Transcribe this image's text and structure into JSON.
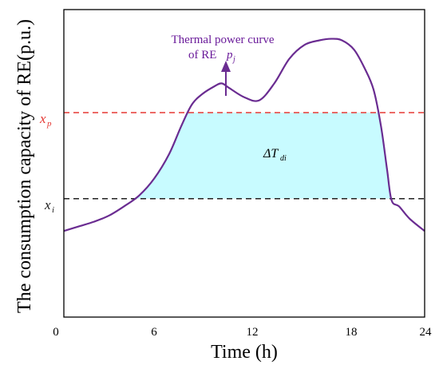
{
  "chart_data": {
    "type": "line",
    "xlabel": "Time (h)",
    "ylabel": "The consumption capacity of RE(p.u.)",
    "x_ticks": [
      "0",
      "6",
      "12",
      "18",
      "24"
    ],
    "xlim": [
      0,
      24
    ],
    "ylim": [
      0,
      1
    ],
    "grid": false,
    "series": [
      {
        "name": "Thermal power curve of RE p_j",
        "color": "#6a2c91",
        "x": [
          0,
          1,
          2,
          3,
          4,
          5,
          6,
          7,
          7.8,
          8.5,
          9.2,
          10,
          10.5,
          11,
          12,
          13,
          14,
          15,
          16,
          17,
          17.8,
          18.5,
          19.3,
          20,
          20.6,
          21.1,
          21.5,
          21.8,
          22.3,
          23,
          24
        ],
        "y": [
          0.28,
          0.295,
          0.31,
          0.33,
          0.36,
          0.395,
          0.45,
          0.53,
          0.62,
          0.69,
          0.725,
          0.75,
          0.76,
          0.745,
          0.715,
          0.705,
          0.76,
          0.84,
          0.885,
          0.9,
          0.905,
          0.9,
          0.87,
          0.81,
          0.74,
          0.62,
          0.48,
          0.38,
          0.36,
          0.32,
          0.28
        ]
      }
    ],
    "lines": {
      "xp": {
        "y": 0.665,
        "color": "#e53935"
      },
      "xi": {
        "y": 0.385,
        "color": "#222222"
      }
    },
    "fill_color": "#c8fbff",
    "annotations": {
      "curve_label_line1": "Thermal power curve",
      "curve_label_line2": "of RE ",
      "curve_label_var": "p",
      "curve_label_sub": "j",
      "area_delta": "ΔT",
      "area_sub": "di",
      "xp_var": "x",
      "xp_sub": "p",
      "xi_var": "x",
      "xi_sub": "i"
    }
  }
}
